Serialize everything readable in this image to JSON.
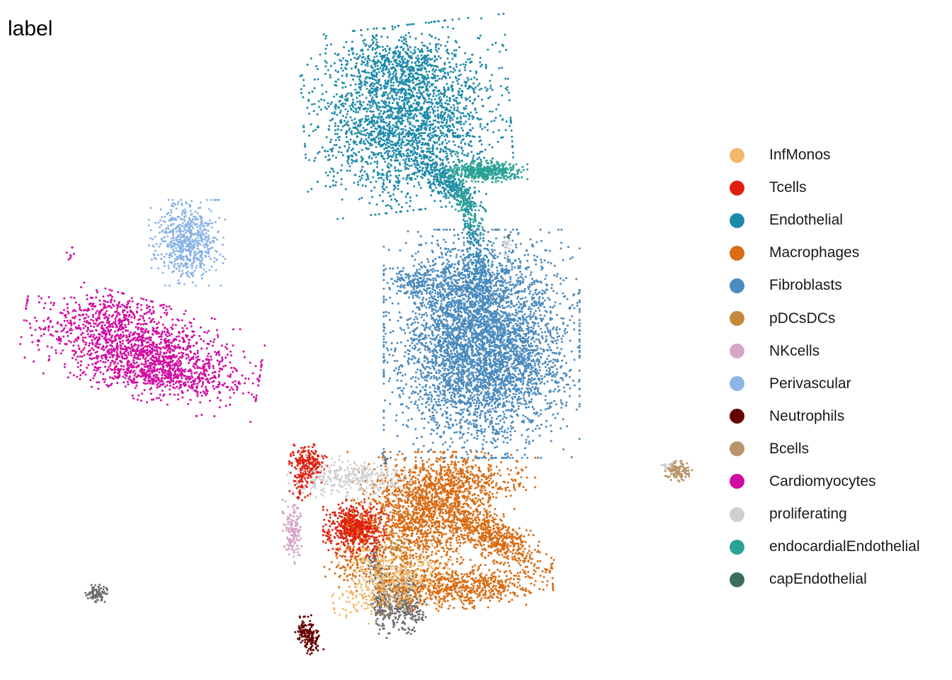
{
  "chart_data": {
    "type": "scatter",
    "title": "label",
    "xlabel": "",
    "ylabel": "",
    "axes_visible": false,
    "grid": false,
    "legend_position": "right",
    "series": [
      {
        "name": "InfMonos",
        "color": "#F2B86A",
        "clusters": [
          {
            "center": [
              0.175,
              -0.745
            ],
            "spread": [
              0.12,
              0.045
            ],
            "rotation": 12,
            "n": 500
          },
          {
            "center": [
              0.085,
              -0.66
            ],
            "spread": [
              0.07,
              0.03
            ],
            "rotation": 0,
            "n": 150
          }
        ]
      },
      {
        "name": "Tcells",
        "color": "#E0200F",
        "clusters": [
          {
            "center": [
              -0.005,
              -0.56
            ],
            "spread": [
              0.06,
              0.04
            ],
            "rotation": 0,
            "n": 650
          },
          {
            "center": [
              -0.215,
              -0.35
            ],
            "spread": [
              0.035,
              0.03
            ],
            "rotation": 0,
            "n": 250
          },
          {
            "center": [
              -0.25,
              -0.42
            ],
            "spread": [
              0.02,
              0.025
            ],
            "rotation": 0,
            "n": 40
          }
        ]
      },
      {
        "name": "Endothelial",
        "color": "#1E8AAA",
        "clusters": [
          {
            "center": [
              0.22,
              0.82
            ],
            "spread": [
              0.19,
              0.13
            ],
            "rotation": 5,
            "n": 2400
          },
          {
            "center": [
              0.15,
              1.0
            ],
            "spread": [
              0.12,
              0.04
            ],
            "rotation": 0,
            "n": 350
          },
          {
            "center": [
              0.4,
              0.6
            ],
            "spread": [
              0.08,
              0.025
            ],
            "rotation": -28,
            "n": 300
          },
          {
            "center": [
              0.52,
              0.38
            ],
            "spread": [
              0.025,
              0.08
            ],
            "rotation": 15,
            "n": 150
          }
        ]
      },
      {
        "name": "Macrophages",
        "color": "#D96C14",
        "clusters": [
          {
            "center": [
              0.27,
              -0.52
            ],
            "spread": [
              0.13,
              0.09
            ],
            "rotation": 0,
            "n": 1300
          },
          {
            "center": [
              0.57,
              -0.57
            ],
            "spread": [
              0.13,
              0.035
            ],
            "rotation": -25,
            "n": 700
          },
          {
            "center": [
              0.48,
              -0.76
            ],
            "spread": [
              0.16,
              0.03
            ],
            "rotation": 3,
            "n": 600
          },
          {
            "center": [
              0.45,
              -0.4
            ],
            "spread": [
              0.14,
              0.04
            ],
            "rotation": 0,
            "n": 450
          },
          {
            "center": [
              -0.03,
              -0.68
            ],
            "spread": [
              0.05,
              0.04
            ],
            "rotation": 0,
            "n": 80
          }
        ]
      },
      {
        "name": "Fibroblasts",
        "color": "#4B8BBE",
        "clusters": [
          {
            "center": [
              0.55,
              0.06
            ],
            "spread": [
              0.18,
              0.16
            ],
            "rotation": 0,
            "n": 4500
          },
          {
            "center": [
              0.48,
              0.26
            ],
            "spread": [
              0.1,
              0.05
            ],
            "rotation": 0,
            "n": 400
          },
          {
            "center": [
              0.25,
              0.27
            ],
            "spread": [
              0.05,
              0.02
            ],
            "rotation": 0,
            "n": 120
          }
        ]
      },
      {
        "name": "pDCsDCs",
        "color": "#C38A3C",
        "clusters": [
          {
            "center": [
              0.18,
              -0.62
            ],
            "spread": [
              0.025,
              0.02
            ],
            "rotation": 0,
            "n": 30
          }
        ]
      },
      {
        "name": "NKcells",
        "color": "#D4A6C8",
        "clusters": [
          {
            "center": [
              -0.28,
              -0.56
            ],
            "spread": [
              0.02,
              0.05
            ],
            "rotation": 0,
            "n": 150
          }
        ]
      },
      {
        "name": "Perivascular",
        "color": "#8CB4E4",
        "clusters": [
          {
            "center": [
              -0.75,
              0.4
            ],
            "spread": [
              0.07,
              0.06
            ],
            "rotation": 0,
            "n": 650
          }
        ]
      },
      {
        "name": "Neutrophils",
        "color": "#660000",
        "clusters": [
          {
            "center": [
              -0.215,
              -0.92
            ],
            "spread": [
              0.02,
              0.03
            ],
            "rotation": 25,
            "n": 160
          }
        ]
      },
      {
        "name": "Bcells",
        "color": "#B8936B",
        "clusters": [
          {
            "center": [
              1.42,
              -0.37
            ],
            "spread": [
              0.025,
              0.015
            ],
            "rotation": 0,
            "n": 110
          }
        ]
      },
      {
        "name": "Cardiomyocytes",
        "color": "#D10CA1",
        "clusters": [
          {
            "center": [
              -0.95,
              0.04
            ],
            "spread": [
              0.22,
              0.07
            ],
            "rotation": -12,
            "n": 1600
          },
          {
            "center": [
              -1.08,
              0.18
            ],
            "spread": [
              0.1,
              0.03
            ],
            "rotation": 0,
            "n": 100
          },
          {
            "center": [
              -0.86,
              -0.05
            ],
            "spread": [
              0.15,
              0.02
            ],
            "rotation": -5,
            "n": 200
          },
          {
            "center": [
              -1.27,
              0.36
            ],
            "spread": [
              0.015,
              0.01
            ],
            "rotation": 0,
            "n": 8
          }
        ]
      },
      {
        "name": "proliferating",
        "color": "#D0D0D0",
        "clusters": [
          {
            "center": [
              -0.02,
              -0.39
            ],
            "spread": [
              0.12,
              0.03
            ],
            "rotation": 0,
            "n": 350
          },
          {
            "center": [
              0.66,
              0.39
            ],
            "spread": [
              0.008,
              0.015
            ],
            "rotation": 0,
            "n": 20
          },
          {
            "center": [
              1.36,
              -0.35
            ],
            "spread": [
              0.01,
              0.008
            ],
            "rotation": 0,
            "n": 10
          }
        ]
      },
      {
        "name": "endocardialEndothelial",
        "color": "#2BA394",
        "clusters": [
          {
            "center": [
              0.56,
              0.64
            ],
            "spread": [
              0.08,
              0.015
            ],
            "rotation": 0,
            "n": 450
          },
          {
            "center": [
              0.48,
              0.53
            ],
            "spread": [
              0.02,
              0.05
            ],
            "rotation": 30,
            "n": 120
          }
        ]
      },
      {
        "name": "capEndothelial",
        "color": "#3C6E5E",
        "clusters": [
          {
            "center": [
              0.67,
              0.42
            ],
            "spread": [
              0.006,
              0.006
            ],
            "rotation": 0,
            "n": 3
          }
        ]
      }
    ],
    "extra_gray_clusters": {
      "color": "#6E6E6E",
      "clusters": [
        {
          "center": [
            0.21,
            -0.81
          ],
          "spread": [
            0.04,
            0.05
          ],
          "rotation": 0,
          "n": 350
        },
        {
          "center": [
            0.11,
            -0.82
          ],
          "spread": [
            0.02,
            0.04
          ],
          "rotation": 0,
          "n": 150
        },
        {
          "center": [
            0.08,
            -0.68
          ],
          "spread": [
            0.02,
            0.04
          ],
          "rotation": 0,
          "n": 100
        },
        {
          "center": [
            -1.15,
            -0.78
          ],
          "spread": [
            0.02,
            0.012
          ],
          "rotation": 0,
          "n": 90
        },
        {
          "center": [
            0.12,
            -0.33
          ],
          "spread": [
            0.006,
            0.01
          ],
          "rotation": 0,
          "n": 15
        }
      ]
    },
    "xlim": [
      -1.45,
      1.55
    ],
    "ylim": [
      -1.0,
      1.05
    ]
  }
}
